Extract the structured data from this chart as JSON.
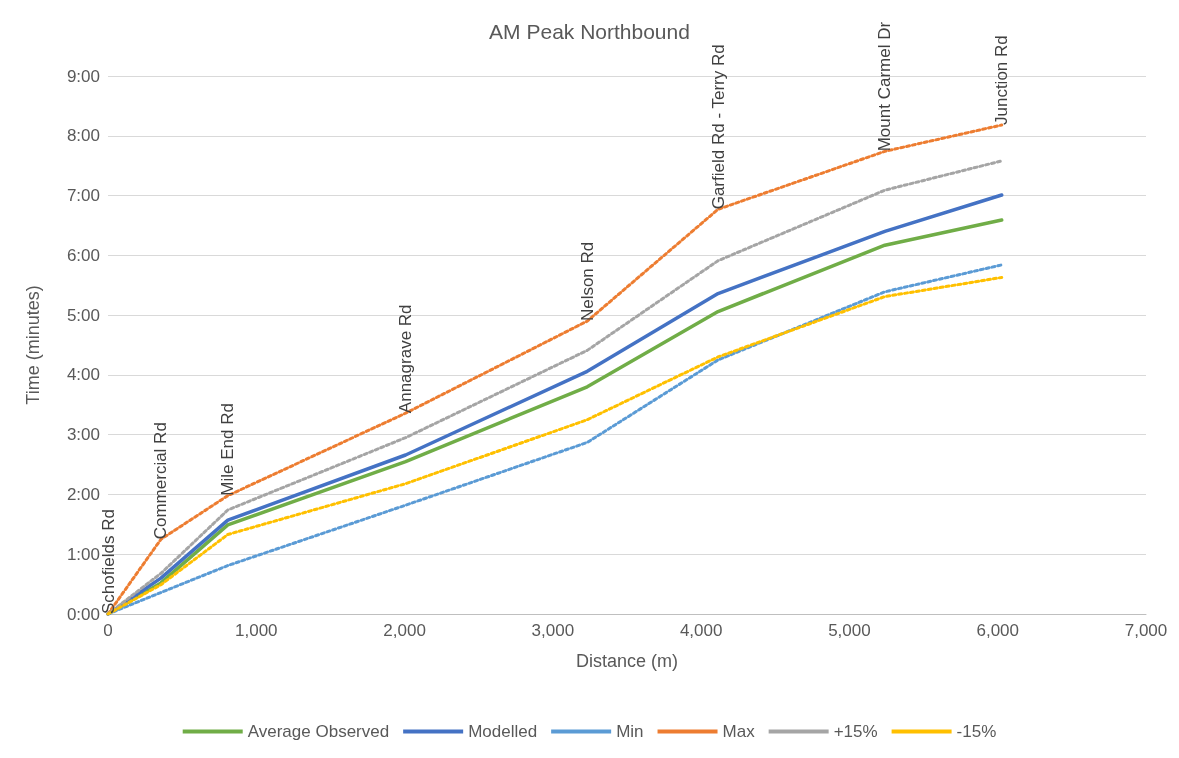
{
  "chart_data": {
    "type": "line",
    "title": "AM Peak Northbound",
    "xlabel": "Distance (m)",
    "ylabel": "Time (minutes)",
    "x": [
      0,
      357,
      808,
      2007,
      3232,
      4114,
      5239,
      6027
    ],
    "series": [
      {
        "name": "Average Observed",
        "color": "#70ad47",
        "line_style": "solid",
        "values": [
          0,
          0.52,
          1.49,
          2.55,
          3.8,
          5.06,
          6.17,
          6.59
        ]
      },
      {
        "name": "Modelled",
        "color": "#4472c4",
        "line_style": "solid",
        "values": [
          0,
          0.6,
          1.57,
          2.66,
          4.06,
          5.36,
          6.4,
          7.01
        ]
      },
      {
        "name": "Min",
        "color": "#5b9bd5",
        "line_style": "dotted",
        "values": [
          0,
          0.36,
          0.81,
          1.82,
          2.87,
          4.25,
          5.39,
          5.84
        ]
      },
      {
        "name": "Max",
        "color": "#ed7d31",
        "line_style": "dotted",
        "values": [
          0,
          1.25,
          1.98,
          3.36,
          4.9,
          6.77,
          7.74,
          8.18
        ]
      },
      {
        "name": "+15%",
        "color": "#a5a5a5",
        "line_style": "dotted",
        "values": [
          0,
          0.68,
          1.74,
          2.95,
          4.41,
          5.91,
          7.09,
          7.58
        ]
      },
      {
        "name": "-15%",
        "color": "#ffc000",
        "line_style": "dotted",
        "values": [
          0,
          0.49,
          1.33,
          2.18,
          3.25,
          4.3,
          5.31,
          5.63
        ]
      }
    ],
    "xlim": [
      0,
      7000
    ],
    "xticks": [
      0,
      {
        "value": 1000,
        "label": "1,000"
      },
      {
        "value": 2000,
        "label": "2,000"
      },
      {
        "value": 3000,
        "label": "3,000"
      },
      {
        "value": 4000,
        "label": "4,000"
      },
      {
        "value": 5000,
        "label": "5,000"
      },
      {
        "value": 6000,
        "label": "6,000"
      },
      {
        "value": 7000,
        "label": "7,000"
      }
    ],
    "ylim": [
      0,
      9
    ],
    "yticks": [
      {
        "value": 0,
        "label": "0:00"
      },
      {
        "value": 1,
        "label": "1:00"
      },
      {
        "value": 2,
        "label": "2:00"
      },
      {
        "value": 3,
        "label": "3:00"
      },
      {
        "value": 4,
        "label": "4:00"
      },
      {
        "value": 5,
        "label": "5:00"
      },
      {
        "value": 6,
        "label": "6:00"
      },
      {
        "value": 7,
        "label": "7:00"
      },
      {
        "value": 8,
        "label": "8:00"
      },
      {
        "value": 9,
        "label": "9:00"
      }
    ],
    "grid": "y",
    "legend": "bottom",
    "marker": "none",
    "annotations": [
      {
        "text": "Schofields Rd",
        "x": 0,
        "y": 0
      },
      {
        "text": "Commercial Rd",
        "x": 357,
        "y": 1.25
      },
      {
        "text": "Mile End Rd",
        "x": 808,
        "y": 1.98
      },
      {
        "text": "Annagrave Rd",
        "x": 2007,
        "y": 3.36
      },
      {
        "text": "Nelson Rd",
        "x": 3232,
        "y": 4.9
      },
      {
        "text": "Garfield Rd - Terry Rd",
        "x": 4114,
        "y": 6.77
      },
      {
        "text": "Mount Carmel Dr",
        "x": 5239,
        "y": 7.74
      },
      {
        "text": "Junction Rd",
        "x": 6027,
        "y": 8.18
      }
    ]
  }
}
